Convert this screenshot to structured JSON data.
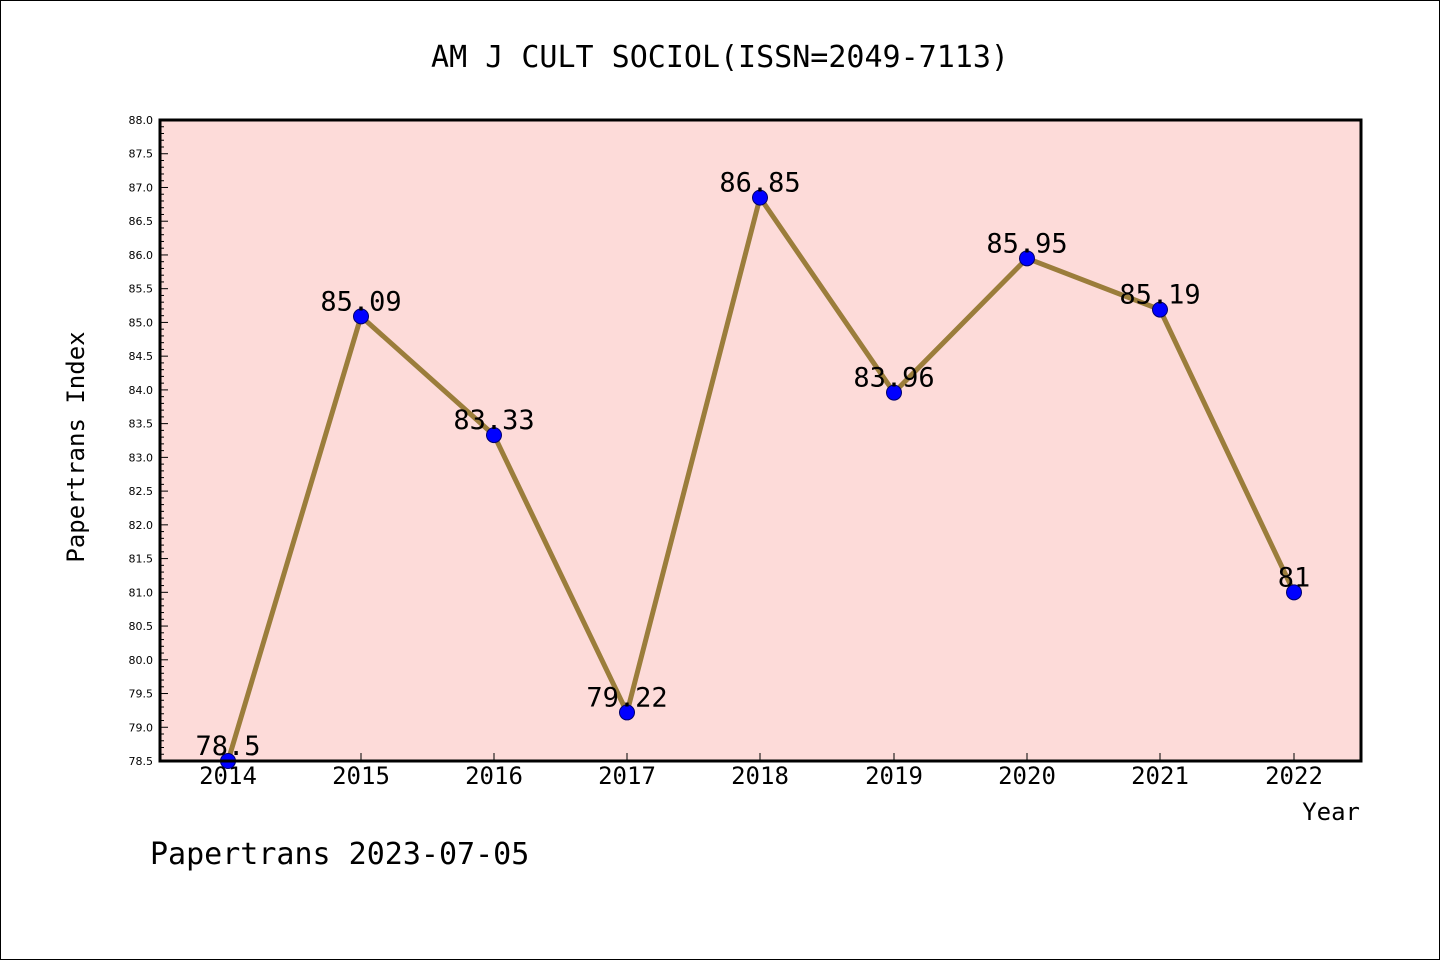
{
  "chart_data": {
    "type": "line",
    "title": "AM J CULT SOCIOL(ISSN=2049-7113)",
    "xlabel": "Year",
    "ylabel": "Papertrans Index",
    "categories": [
      "2014",
      "2015",
      "2016",
      "2017",
      "2018",
      "2019",
      "2020",
      "2021",
      "2022"
    ],
    "series": [
      {
        "values": [
          78.5,
          85.09,
          83.33,
          79.22,
          86.85,
          83.96,
          85.95,
          85.19,
          81
        ],
        "labels": [
          "78.5",
          "85.09",
          "83.33",
          "79.22",
          "86.85",
          "83.96",
          "85.95",
          "85.19",
          "81"
        ]
      }
    ],
    "ylim": [
      78.5,
      88.0
    ],
    "yticks": [
      "78.5",
      "79.0",
      "79.5",
      "80.0",
      "80.5",
      "81.0",
      "81.5",
      "82.0",
      "82.5",
      "83.0",
      "83.5",
      "84.0",
      "84.5",
      "85.0",
      "85.5",
      "86.0",
      "86.5",
      "87.0",
      "87.5",
      "88.0"
    ],
    "grid": false,
    "colors": {
      "plot_background": "#fddbd9",
      "line": "#9b7d3b",
      "marker": "#0000ff"
    }
  },
  "footer": "Papertrans 2023-07-05"
}
